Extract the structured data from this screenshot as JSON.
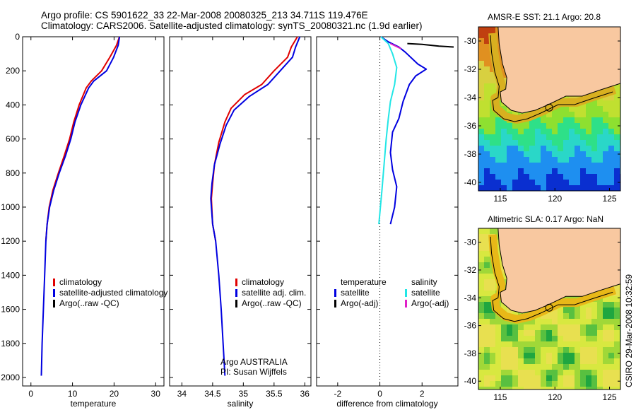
{
  "title_line1": "Argo profile: CS 5901622_33 22-Mar-2008 20080325_213 34.711S 119.476E",
  "title_line2": "Climatology: CARS2006. Satellite-adjusted climatology: synTS_20080321.nc (1.9d earlier)",
  "colors": {
    "red": "#e00000",
    "blue": "#0000e0",
    "black": "#000000",
    "cyan": "#22e6e6",
    "magenta": "#e020c8",
    "land": "#f8c8a0"
  },
  "chart_data": [
    {
      "type": "line",
      "xlabel": "temperature",
      "ylabel": "",
      "xlim": [
        -2,
        32
      ],
      "ylim": [
        2050,
        0
      ],
      "xticks": [
        0,
        10,
        20,
        30
      ],
      "yticks": [
        0,
        200,
        400,
        600,
        800,
        1000,
        1200,
        1400,
        1600,
        1800,
        2000
      ],
      "series": [
        {
          "name": "climatology",
          "color": "red",
          "points": [
            [
              21.3,
              0
            ],
            [
              20.6,
              50
            ],
            [
              19.0,
              120
            ],
            [
              17.0,
              200
            ],
            [
              14.5,
              260
            ],
            [
              13.3,
              300
            ],
            [
              11.6,
              400
            ],
            [
              10.3,
              500
            ],
            [
              9.3,
              600
            ],
            [
              8.0,
              700
            ],
            [
              6.6,
              800
            ],
            [
              5.3,
              900
            ],
            [
              4.4,
              1000
            ],
            [
              3.9,
              1100
            ],
            [
              3.6,
              1200
            ]
          ]
        },
        {
          "name": "satellite-adjusted climatology",
          "color": "blue",
          "points": [
            [
              21.3,
              0
            ],
            [
              21.0,
              50
            ],
            [
              19.9,
              120
            ],
            [
              18.2,
              200
            ],
            [
              15.1,
              260
            ],
            [
              13.9,
              300
            ],
            [
              12.0,
              400
            ],
            [
              10.6,
              500
            ],
            [
              9.6,
              600
            ],
            [
              8.3,
              700
            ],
            [
              6.8,
              800
            ],
            [
              5.5,
              900
            ],
            [
              4.5,
              1000
            ],
            [
              3.9,
              1100
            ],
            [
              3.6,
              1200
            ],
            [
              3.3,
              1400
            ],
            [
              3.0,
              1600
            ],
            [
              2.7,
              1800
            ],
            [
              2.5,
              1990
            ]
          ]
        }
      ],
      "legend": [
        "climatology",
        "satellite-adjusted climatology",
        "Argo(..raw -QC)"
      ]
    },
    {
      "type": "line",
      "xlabel": "salinity",
      "xlim": [
        33.8,
        36.1
      ],
      "ylim": [
        2050,
        0
      ],
      "xticks": [
        34,
        34.5,
        35,
        35.5,
        36
      ],
      "xtick_labels": [
        "34",
        "34.5",
        "35",
        "35.5",
        "36"
      ],
      "series": [
        {
          "name": "climatology",
          "color": "red",
          "points": [
            [
              35.88,
              0
            ],
            [
              35.78,
              60
            ],
            [
              35.72,
              120
            ],
            [
              35.5,
              200
            ],
            [
              35.3,
              280
            ],
            [
              35.02,
              340
            ],
            [
              34.8,
              420
            ],
            [
              34.7,
              500
            ],
            [
              34.6,
              620
            ],
            [
              34.53,
              750
            ],
            [
              34.5,
              860
            ],
            [
              34.48,
              950
            ],
            [
              34.5,
              1100
            ],
            [
              34.55,
              1200
            ]
          ]
        },
        {
          "name": "satellite adj. clim.",
          "color": "blue",
          "points": [
            [
              35.92,
              0
            ],
            [
              35.85,
              60
            ],
            [
              35.8,
              120
            ],
            [
              35.6,
              200
            ],
            [
              35.4,
              280
            ],
            [
              35.1,
              350
            ],
            [
              34.85,
              430
            ],
            [
              34.72,
              520
            ],
            [
              34.62,
              630
            ],
            [
              34.53,
              750
            ],
            [
              34.49,
              860
            ],
            [
              34.47,
              950
            ],
            [
              34.5,
              1100
            ],
            [
              34.55,
              1200
            ],
            [
              34.6,
              1400
            ],
            [
              34.64,
              1600
            ],
            [
              34.67,
              1800
            ],
            [
              34.7,
              1990
            ]
          ]
        }
      ],
      "legend": [
        "climatology",
        "satellite adj. clim.",
        "Argo(..raw -QC)"
      ],
      "note1": "Argo AUSTRALIA",
      "note2": "PI: Susan Wijffels"
    },
    {
      "type": "line",
      "xlabel": "difference from climatology",
      "xlim": [
        -3,
        3.7
      ],
      "ylim": [
        2050,
        0
      ],
      "xticks": [
        -2,
        0,
        2
      ],
      "legend_left": [
        "temperature",
        "satellite",
        "Argo(-adj)"
      ],
      "legend_right": [
        "salinity",
        "satellite",
        "Argo(-adj)"
      ],
      "series": [
        {
          "name": "temperature satellite",
          "color": "blue",
          "points": [
            [
              0.05,
              0
            ],
            [
              0.4,
              30
            ],
            [
              0.9,
              60
            ],
            [
              1.2,
              90
            ],
            [
              1.8,
              160
            ],
            [
              2.2,
              190
            ],
            [
              1.7,
              230
            ],
            [
              1.4,
              280
            ],
            [
              1.1,
              380
            ],
            [
              0.9,
              480
            ],
            [
              0.6,
              560
            ],
            [
              0.5,
              680
            ],
            [
              0.6,
              780
            ],
            [
              0.8,
              880
            ],
            [
              0.7,
              1000
            ],
            [
              0.5,
              1100
            ]
          ]
        },
        {
          "name": "temperature Argo(-adj)",
          "color": "black",
          "points": [
            [
              1.3,
              40
            ],
            [
              2.0,
              45
            ],
            [
              2.8,
              55
            ],
            [
              3.5,
              60
            ]
          ]
        },
        {
          "name": "salinity satellite",
          "color": "cyan",
          "points": [
            [
              0.05,
              0
            ],
            [
              0.4,
              40
            ],
            [
              0.6,
              100
            ],
            [
              0.8,
              180
            ],
            [
              0.7,
              280
            ],
            [
              0.5,
              380
            ],
            [
              0.4,
              480
            ],
            [
              0.3,
              600
            ],
            [
              0.2,
              750
            ],
            [
              0.1,
              900
            ],
            [
              -0.05,
              1100
            ]
          ]
        },
        {
          "name": "salinity Argo(-adj)",
          "color": "magenta",
          "points": [
            [
              0.5,
              40
            ],
            [
              1.0,
              70
            ]
          ]
        }
      ]
    }
  ],
  "maps": [
    {
      "title": "AMSR-E SST: 21.1 Argo: 20.8",
      "kind": "sst",
      "xticks": [
        115,
        120,
        125
      ],
      "yticks": [
        -30,
        -32,
        -34,
        -36,
        -38,
        -40
      ]
    },
    {
      "title": "Altimetric SLA: 0.17 Argo: NaN",
      "kind": "sla",
      "xticks": [
        115,
        120,
        125
      ],
      "yticks": [
        -30,
        -32,
        -34,
        -36,
        -38,
        -40
      ]
    }
  ],
  "map_lon": [
    113,
    126
  ],
  "map_lat": [
    -40.6,
    -29
  ],
  "argo_pos": [
    119.476,
    -34.711
  ],
  "side_label": "CSIRO 29-Mar-2008 10:32:59"
}
